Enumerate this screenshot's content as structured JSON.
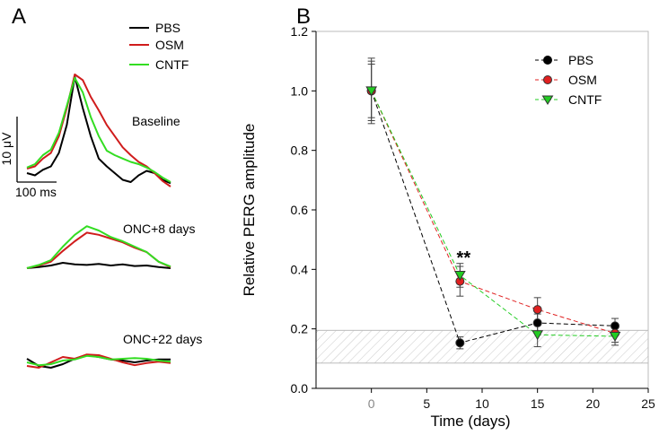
{
  "chart_data": [
    {
      "panel": "A",
      "type": "line",
      "title": "",
      "legend": [
        "PBS",
        "OSM",
        "CNTF"
      ],
      "colors": {
        "PBS": "#000000",
        "OSM": "#d01c1c",
        "CNTF": "#33dd22"
      },
      "scalebar": {
        "y_label": "10 μV",
        "x_label": "100 ms"
      },
      "traces": [
        {
          "label": "Baseline",
          "series": [
            {
              "name": "PBS",
              "y": [
                0.12,
                0.1,
                0.15,
                0.18,
                0.3,
                0.55,
                0.98,
                0.7,
                0.45,
                0.25,
                0.18,
                0.12,
                0.06,
                0.04,
                0.1,
                0.14,
                0.12,
                0.06,
                0.03
              ]
            },
            {
              "name": "OSM",
              "y": [
                0.16,
                0.18,
                0.25,
                0.3,
                0.45,
                0.7,
                1.0,
                0.95,
                0.8,
                0.68,
                0.55,
                0.45,
                0.35,
                0.28,
                0.22,
                0.18,
                0.12,
                0.05,
                0.0
              ]
            },
            {
              "name": "CNTF",
              "y": [
                0.17,
                0.2,
                0.28,
                0.33,
                0.48,
                0.72,
                0.97,
                0.84,
                0.62,
                0.45,
                0.32,
                0.28,
                0.25,
                0.22,
                0.2,
                0.17,
                0.13,
                0.08,
                0.04
              ]
            }
          ]
        },
        {
          "label": "ONC+8 days",
          "series": [
            {
              "name": "PBS",
              "y": [
                0.0,
                0.02,
                0.05,
                0.1,
                0.07,
                0.06,
                0.08,
                0.05,
                0.07,
                0.04,
                0.05,
                0.02,
                0.0
              ]
            },
            {
              "name": "OSM",
              "y": [
                0.0,
                0.05,
                0.12,
                0.32,
                0.5,
                0.66,
                0.62,
                0.55,
                0.48,
                0.38,
                0.3,
                0.12,
                0.02
              ]
            },
            {
              "name": "CNTF",
              "y": [
                0.0,
                0.06,
                0.15,
                0.4,
                0.62,
                0.78,
                0.7,
                0.58,
                0.5,
                0.4,
                0.3,
                0.12,
                0.03
              ]
            }
          ]
        },
        {
          "label": "ONC+22 days",
          "series": [
            {
              "name": "PBS",
              "y": [
                0.3,
                0.1,
                0.05,
                0.15,
                0.3,
                0.4,
                0.35,
                0.28,
                0.25,
                0.2,
                0.25,
                0.28,
                0.28
              ]
            },
            {
              "name": "OSM",
              "y": [
                0.1,
                0.05,
                0.2,
                0.35,
                0.3,
                0.42,
                0.4,
                0.3,
                0.2,
                0.12,
                0.18,
                0.22,
                0.18
              ]
            },
            {
              "name": "CNTF",
              "y": [
                0.2,
                0.12,
                0.15,
                0.25,
                0.28,
                0.38,
                0.35,
                0.28,
                0.3,
                0.32,
                0.3,
                0.25,
                0.22
              ]
            }
          ]
        }
      ]
    },
    {
      "panel": "B",
      "type": "line",
      "title": "",
      "xlabel": "Time (days)",
      "ylabel": "Relative PERG amplitude",
      "xlim": [
        -5,
        25
      ],
      "ylim": [
        0,
        1.2
      ],
      "xticks": [
        0,
        5,
        10,
        15,
        20,
        25
      ],
      "yticks": [
        0.0,
        0.2,
        0.4,
        0.6,
        0.8,
        1.0,
        1.2
      ],
      "xtick_labels": [
        "0",
        "5",
        "10",
        "15",
        "20",
        "25"
      ],
      "ytick_labels": [
        "0.0",
        "0.2",
        "0.4",
        "0.6",
        "0.8",
        "1.0",
        "1.2"
      ],
      "legend_position": "top-right",
      "series": [
        {
          "name": "PBS",
          "color": "#000000",
          "marker": "circle",
          "x": [
            0,
            8,
            15,
            22
          ],
          "y": [
            1.0,
            0.153,
            0.22,
            0.21
          ],
          "err": [
            0.1,
            0.02,
            0.03,
            0.025
          ]
        },
        {
          "name": "OSM",
          "color": "#e02020",
          "marker": "circle",
          "x": [
            0,
            8,
            15,
            22
          ],
          "y": [
            1.0,
            0.36,
            0.265,
            0.185
          ],
          "err": [
            0.11,
            0.05,
            0.04,
            0.03
          ]
        },
        {
          "name": "CNTF",
          "color": "#22cc22",
          "marker": "triangle",
          "x": [
            0,
            8,
            15,
            22
          ],
          "y": [
            1.0,
            0.38,
            0.18,
            0.175
          ],
          "err": [
            0.09,
            0.04,
            0.04,
            0.03
          ]
        }
      ],
      "reference_band": {
        "y_min": 0.085,
        "y_max": 0.195,
        "x_min": -5,
        "x_max": 25
      },
      "annotation": {
        "text": "**",
        "x": 8,
        "y": 0.44
      }
    }
  ],
  "labels": {
    "panelA": "A",
    "panelB": "B"
  }
}
